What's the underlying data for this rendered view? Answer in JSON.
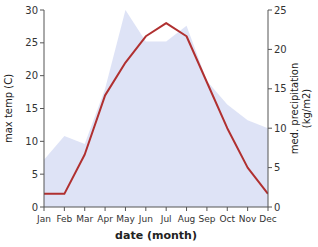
{
  "chart_data": {
    "type": "line",
    "xlabel": "date (month)",
    "ylabel": "max temp (C)",
    "y2label": "med. precipitation\n(kg/m2)",
    "categories": [
      "Jan",
      "Feb",
      "Mar",
      "Apr",
      "May",
      "Jun",
      "Jul",
      "Aug",
      "Sep",
      "Oct",
      "Nov",
      "Dec"
    ],
    "series": [
      {
        "type": "area",
        "axis": "y2",
        "color": "#c8d0f0",
        "values": [
          6,
          9,
          8,
          15,
          25,
          21,
          21,
          23,
          16,
          13,
          11,
          10
        ]
      },
      {
        "type": "line",
        "color": "#b03030",
        "values": [
          2,
          2,
          8,
          17,
          22,
          26,
          28,
          26,
          19,
          12,
          6,
          2
        ]
      }
    ],
    "ylim": [
      0,
      30
    ],
    "yticks": [
      0,
      5,
      10,
      15,
      20,
      25,
      30
    ],
    "y2lim": [
      0,
      25
    ],
    "y2ticks": [
      0,
      5,
      10,
      15,
      20,
      25
    ],
    "grid": false
  }
}
